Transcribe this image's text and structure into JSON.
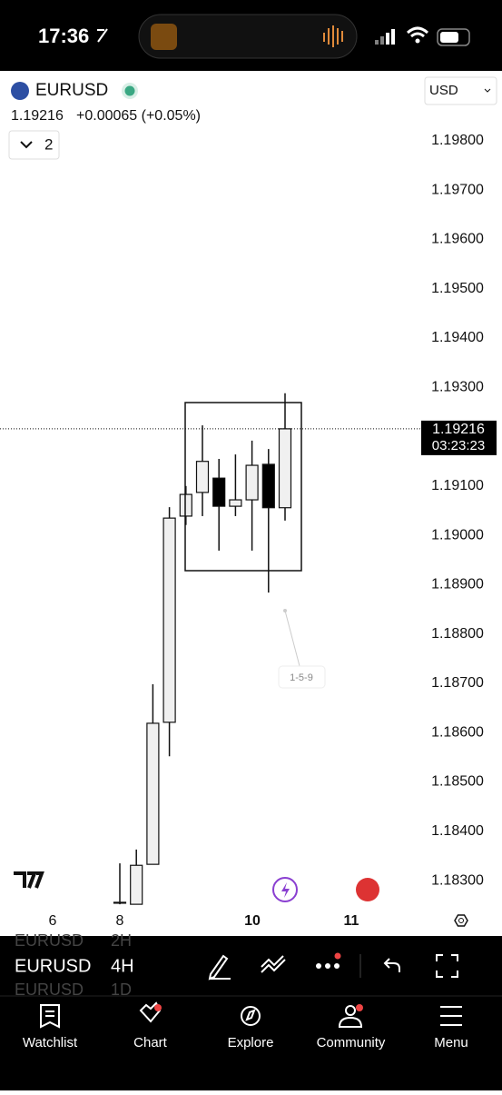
{
  "status_bar": {
    "time": "17:36"
  },
  "header": {
    "symbol": "EURUSD",
    "price": "1.19216",
    "change": "+0.00065 (+0.05%)",
    "currency": "USD",
    "indicator_count": "2"
  },
  "chart_data": {
    "type": "candlestick",
    "open": [
      1.18256,
      1.18252,
      1.18333,
      1.18621,
      1.19039,
      1.19087,
      1.19116,
      1.19059,
      1.19072,
      1.19144,
      1.19056
    ],
    "high": [
      1.18335,
      1.18363,
      1.18698,
      1.19057,
      1.191,
      1.19223,
      1.19155,
      1.19164,
      1.19192,
      1.19175,
      1.19288
    ],
    "low": [
      1.18252,
      1.18252,
      1.18333,
      1.18552,
      1.19021,
      1.19039,
      1.18969,
      1.19039,
      1.18969,
      1.18884,
      1.1903
    ],
    "close": [
      1.18255,
      1.18331,
      1.18619,
      1.19035,
      1.19083,
      1.1915,
      1.19059,
      1.19072,
      1.19142,
      1.19056,
      1.19216
    ],
    "ylim": [
      1.18243,
      1.19938
    ],
    "yticks": [
      {
        "value": 1.198,
        "label": "1.19800"
      },
      {
        "value": 1.197,
        "label": "1.19700"
      },
      {
        "value": 1.196,
        "label": "1.19600"
      },
      {
        "value": 1.195,
        "label": "1.19500"
      },
      {
        "value": 1.194,
        "label": "1.19400"
      },
      {
        "value": 1.193,
        "label": "1.19300"
      },
      {
        "value": 1.191,
        "label": "1.19100"
      },
      {
        "value": 1.19,
        "label": "1.19000"
      },
      {
        "value": 1.189,
        "label": "1.18900"
      },
      {
        "value": 1.188,
        "label": "1.18800"
      },
      {
        "value": 1.187,
        "label": "1.18700"
      },
      {
        "value": 1.186,
        "label": "1.18600"
      },
      {
        "value": 1.185,
        "label": "1.18500"
      },
      {
        "value": 1.184,
        "label": "1.18400"
      },
      {
        "value": 1.183,
        "label": "1.18300"
      }
    ],
    "current_price": {
      "value": 1.19216,
      "label": "1.19216"
    },
    "countdown": "03:23:23",
    "x_labels": [
      "6",
      "8",
      "10",
      "11"
    ],
    "drawing_label": "1-5-9"
  },
  "toolbar": {
    "symbol": "EURUSD",
    "interval": "4H",
    "picker_above": [
      "EURUSD",
      "2H"
    ],
    "picker_below": [
      "EURUSD",
      "1D"
    ]
  },
  "tabs": [
    "Watchlist",
    "Chart",
    "Explore",
    "Community",
    "Menu"
  ]
}
